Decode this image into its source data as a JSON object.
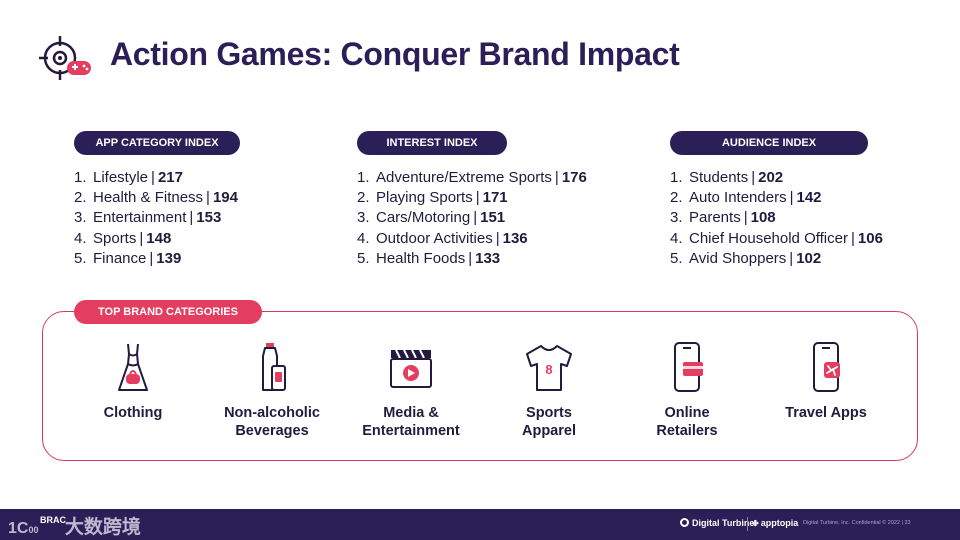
{
  "title": "Action Games: Conquer Brand Impact",
  "icons": {
    "title": "crosshair-gamepad-icon"
  },
  "columns": [
    {
      "heading": "APP CATEGORY INDEX",
      "items": [
        {
          "rank": "1.",
          "name": "Lifestyle",
          "value": "217"
        },
        {
          "rank": "2.",
          "name": "Health & Fitness",
          "value": "194"
        },
        {
          "rank": "3.",
          "name": "Entertainment",
          "value": "153"
        },
        {
          "rank": "4.",
          "name": "Sports",
          "value": "148"
        },
        {
          "rank": "5.",
          "name": "Finance",
          "value": "139"
        }
      ]
    },
    {
      "heading": "INTEREST INDEX",
      "items": [
        {
          "rank": "1.",
          "name": "Adventure/Extreme Sports",
          "value": "176"
        },
        {
          "rank": "2.",
          "name": "Playing Sports",
          "value": "171"
        },
        {
          "rank": "3.",
          "name": "Cars/Motoring",
          "value": "151"
        },
        {
          "rank": "4.",
          "name": "Outdoor Activities",
          "value": "136"
        },
        {
          "rank": "5.",
          "name": "Health Foods",
          "value": "133"
        }
      ]
    },
    {
      "heading": "AUDIENCE INDEX",
      "items": [
        {
          "rank": "1.",
          "name": "Students",
          "value": "202"
        },
        {
          "rank": "2.",
          "name": "Auto Intenders",
          "value": "142"
        },
        {
          "rank": "3.",
          "name": "Parents",
          "value": "108"
        },
        {
          "rank": "4.",
          "name": "Chief Household Officer",
          "value": "106"
        },
        {
          "rank": "5.",
          "name": "Avid Shoppers",
          "value": "102"
        }
      ]
    }
  ],
  "brand": {
    "heading": "TOP BRAND CATEGORIES",
    "categories": [
      {
        "label": "Clothing",
        "icon": "dress-icon"
      },
      {
        "label": "Non-alcoholic\nBeverages",
        "icon": "bottle-can-icon"
      },
      {
        "label": "Media &\nEntertainment",
        "icon": "clapperboard-icon"
      },
      {
        "label": "Sports\nApparel",
        "icon": "jersey-icon"
      },
      {
        "label": "Online\nRetailers",
        "icon": "phone-card-icon"
      },
      {
        "label": "Travel Apps",
        "icon": "phone-plane-icon"
      }
    ]
  },
  "footer": {
    "watermark": "大数跨境",
    "watermark_small": "BRAC",
    "brand1": "Digital Turbine",
    "brand2": "apptopia",
    "confidential": "Digital Turbine, Inc. Confidential © 2022   |   33"
  },
  "colors": {
    "navy": "#2a1f57",
    "accent": "#e33e60"
  }
}
